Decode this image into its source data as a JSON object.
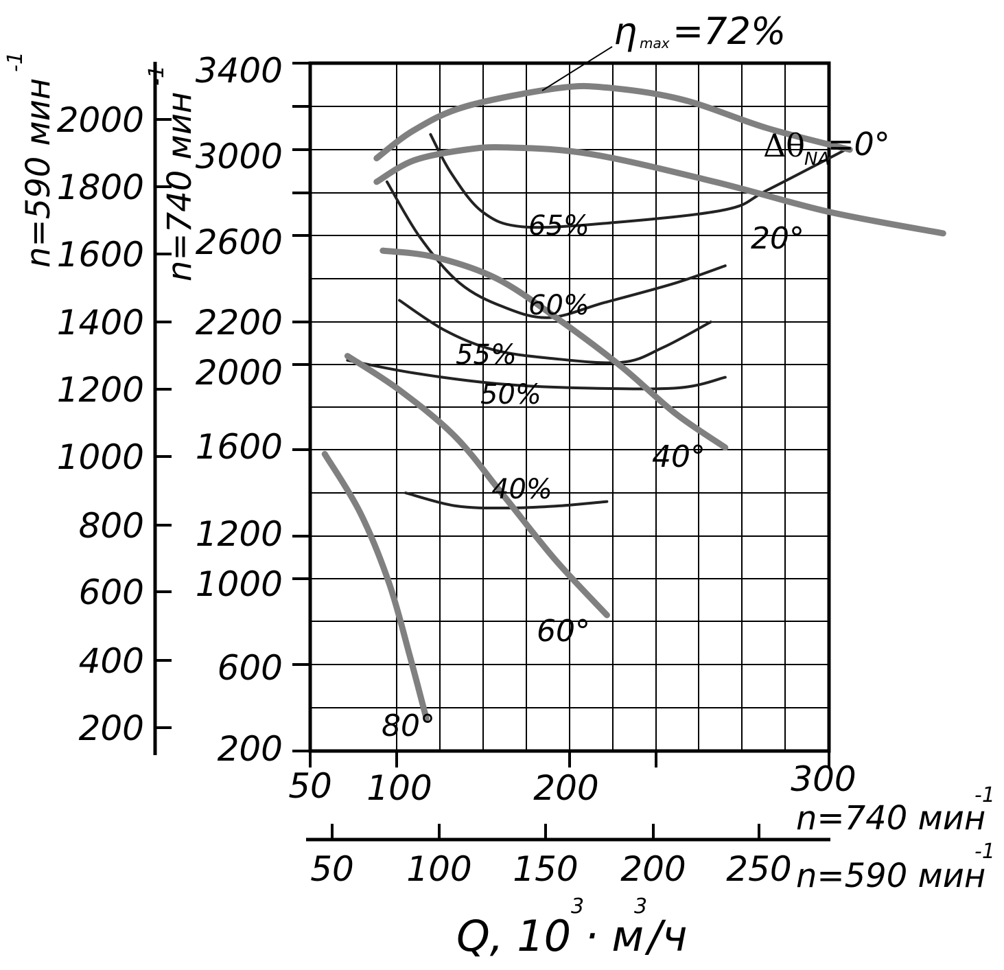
{
  "chart_data": {
    "type": "line",
    "title": "",
    "x_axis_primary": {
      "ticks": [
        "50",
        "100",
        "200",
        "300"
      ],
      "tick_values": [
        50,
        100,
        200,
        300
      ],
      "range": [
        50,
        300
      ],
      "speed_label": "n=740 мин",
      "speed_exponent": "-1"
    },
    "x_axis_secondary": {
      "ticks": [
        "50",
        "100",
        "150",
        "200",
        "250"
      ],
      "speed_label": "n=590 мин",
      "speed_exponent": "-1"
    },
    "x_label": {
      "part1": "Q, 10",
      "exp1": "3",
      "part2": "· м",
      "exp2": "3",
      "part3": "/ч"
    },
    "y_axis_740": {
      "ticks": [
        "200",
        "600",
        "1000",
        "1200",
        "1600",
        "2000",
        "2200",
        "2600",
        "3000",
        "3400"
      ],
      "speed_label": "n=740 мин",
      "speed_exponent": "-1"
    },
    "y_axis_590": {
      "ticks": [
        "200",
        "400",
        "600",
        "800",
        "1000",
        "1200",
        "1400",
        "1600",
        "1800",
        "2000"
      ],
      "speed_label": "n=590 мин",
      "speed_exponent": "-1"
    },
    "pressure_curves": [
      {
        "name": "0°",
        "points": [
          [
            82,
            2960
          ],
          [
            100,
            3090
          ],
          [
            125,
            3200
          ],
          [
            170,
            3285
          ],
          [
            195,
            3285
          ],
          [
            230,
            3230
          ],
          [
            270,
            3100
          ],
          [
            310,
            3000
          ]
        ]
      },
      {
        "name": "20°",
        "points": [
          [
            82,
            2850
          ],
          [
            100,
            2950
          ],
          [
            125,
            3000
          ],
          [
            145,
            3010
          ],
          [
            185,
            2980
          ],
          [
            245,
            2850
          ],
          [
            300,
            2710
          ],
          [
            355,
            2610
          ]
        ]
      },
      {
        "name": "40°",
        "points": [
          [
            85,
            2530
          ],
          [
            110,
            2500
          ],
          [
            140,
            2400
          ],
          [
            170,
            2210
          ],
          [
            200,
            1990
          ],
          [
            226,
            1770
          ],
          [
            250,
            1610
          ]
        ]
      },
      {
        "name": "60°",
        "points": [
          [
            68,
            2040
          ],
          [
            93,
            1880
          ],
          [
            120,
            1660
          ],
          [
            143,
            1390
          ],
          [
            168,
            1090
          ],
          [
            193,
            830
          ]
        ]
      },
      {
        "name": "80°",
        "points": [
          [
            57,
            1580
          ],
          [
            74,
            1310
          ],
          [
            88,
            980
          ],
          [
            98,
            640
          ],
          [
            106,
            350
          ]
        ]
      }
    ],
    "efficiency_curves": [
      {
        "name": "65%",
        "points": [
          [
            108,
            3070
          ],
          [
            118,
            2890
          ],
          [
            133,
            2710
          ],
          [
            153,
            2640
          ],
          [
            196,
            2660
          ],
          [
            250,
            2720
          ],
          [
            270,
            2810
          ],
          [
            308,
            3000
          ]
        ]
      },
      {
        "name": "60%",
        "points": [
          [
            87,
            2850
          ],
          [
            103,
            2590
          ],
          [
            122,
            2380
          ],
          [
            143,
            2270
          ],
          [
            165,
            2220
          ],
          [
            192,
            2290
          ],
          [
            226,
            2380
          ],
          [
            250,
            2460
          ]
        ]
      },
      {
        "name": "55%",
        "points": [
          [
            93,
            2300
          ],
          [
            115,
            2160
          ],
          [
            138,
            2070
          ],
          [
            165,
            2030
          ],
          [
            200,
            2010
          ],
          [
            220,
            2080
          ],
          [
            243,
            2200
          ]
        ]
      },
      {
        "name": "50%",
        "points": [
          [
            68,
            2020
          ],
          [
            100,
            1960
          ],
          [
            140,
            1910
          ],
          [
            180,
            1890
          ],
          [
            227,
            1890
          ],
          [
            250,
            1940
          ]
        ]
      },
      {
        "name": "40%",
        "points": [
          [
            96,
            1400
          ],
          [
            120,
            1340
          ],
          [
            145,
            1330
          ],
          [
            170,
            1340
          ],
          [
            193,
            1360
          ]
        ]
      }
    ],
    "efficiency_labels": [
      "65%",
      "60%",
      "55%",
      "50%",
      "40%"
    ],
    "angle_labels": [
      "20°",
      "40°",
      "60°",
      "80°"
    ],
    "eta_max": {
      "symbol": "η",
      "subscript": "max",
      "text": "=72%"
    },
    "delta_theta": {
      "symbol": "Δθ",
      "subscript": "NA",
      "text": "=0°"
    },
    "colors": {
      "pressure": "#808080",
      "efficiency": "#222222",
      "grid": "#000000"
    }
  }
}
